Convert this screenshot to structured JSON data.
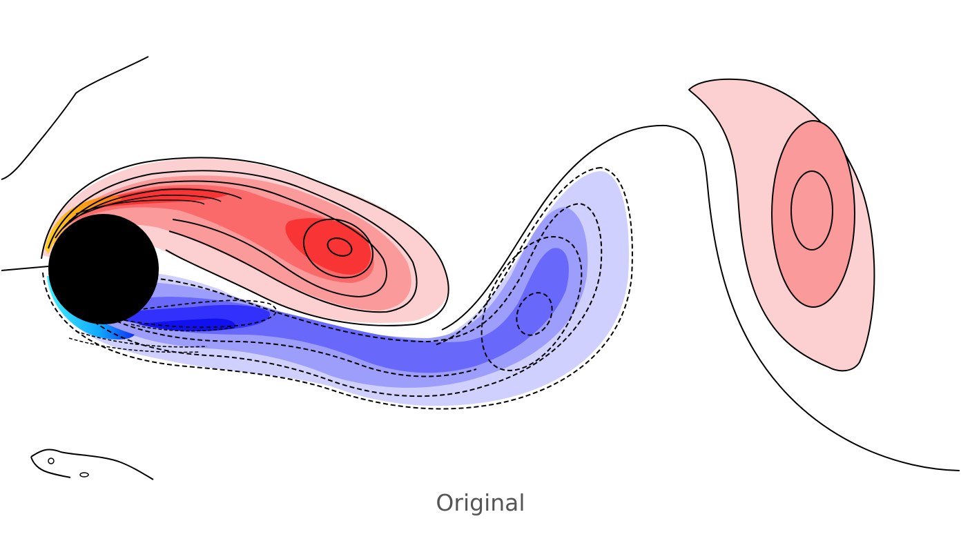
{
  "figure": {
    "caption": "Original",
    "colors": {
      "body": "#000000",
      "pos_1": "#fcd0d0",
      "pos_2": "#fb9a9a",
      "pos_3": "#fa6a6a",
      "pos_4": "#f83434",
      "pos_5": "#f41010",
      "pos_tip": "#ff8c10",
      "pos_tip_2": "#ffd020",
      "neg_1": "#cfd0fd",
      "neg_2": "#9d9dfc",
      "neg_3": "#6868fb",
      "neg_4": "#3131fb",
      "neg_5": "#1010f0",
      "neg_tip": "#18c8ff",
      "neg_tip_2": "#40f0ff",
      "contour": "#000000",
      "caption": "#555555"
    }
  }
}
